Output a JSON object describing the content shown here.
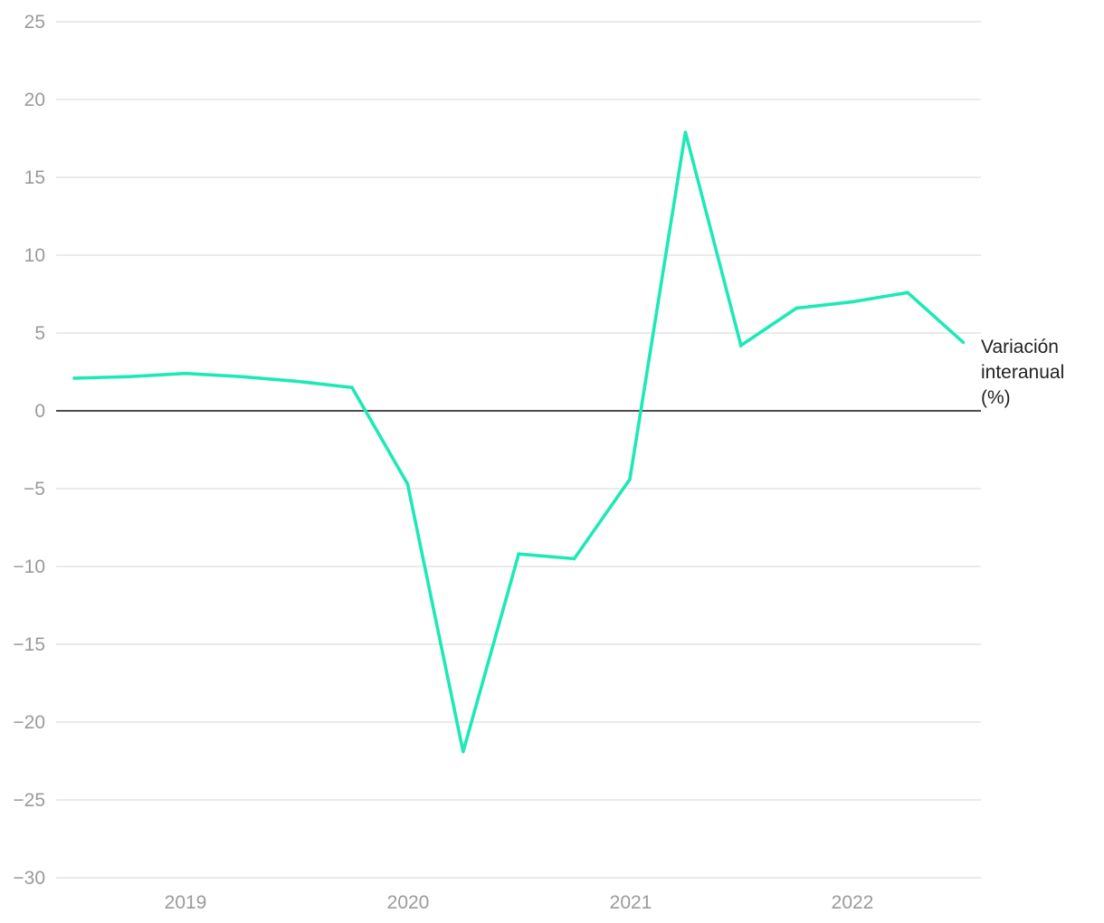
{
  "chart_data": {
    "type": "line",
    "title": "",
    "xlabel": "",
    "ylabel": "",
    "ylim": [
      -30,
      25
    ],
    "yticks": [
      25,
      20,
      15,
      10,
      5,
      0,
      -5,
      -10,
      -15,
      -20,
      -25,
      -30
    ],
    "ytick_labels": [
      "25",
      "20",
      "15",
      "10",
      "5",
      "0",
      "−5",
      "−10",
      "−15",
      "−20",
      "−25",
      "−30"
    ],
    "xtick_labels": [
      "2019",
      "2020",
      "2021",
      "2022"
    ],
    "grid": true,
    "zero_line": true,
    "x": [
      "2018-T3",
      "2018-T4",
      "2019-T1",
      "2019-T2",
      "2019-T3",
      "2019-T4",
      "2020-T1",
      "2020-T2",
      "2020-T3",
      "2020-T4",
      "2021-T1",
      "2021-T2",
      "2021-T3",
      "2021-T4",
      "2022-T1",
      "2022-T2",
      "2022-T3"
    ],
    "series": [
      {
        "name": "Variación interanual (%)",
        "label_lines": [
          "Variación",
          "interanual",
          "(%)"
        ],
        "color": "#1de9b6",
        "values": [
          2.1,
          2.2,
          2.4,
          2.2,
          1.9,
          1.5,
          -4.7,
          -21.9,
          -9.2,
          -9.5,
          -4.4,
          17.9,
          4.2,
          6.6,
          7.0,
          7.6,
          4.4
        ]
      }
    ]
  }
}
